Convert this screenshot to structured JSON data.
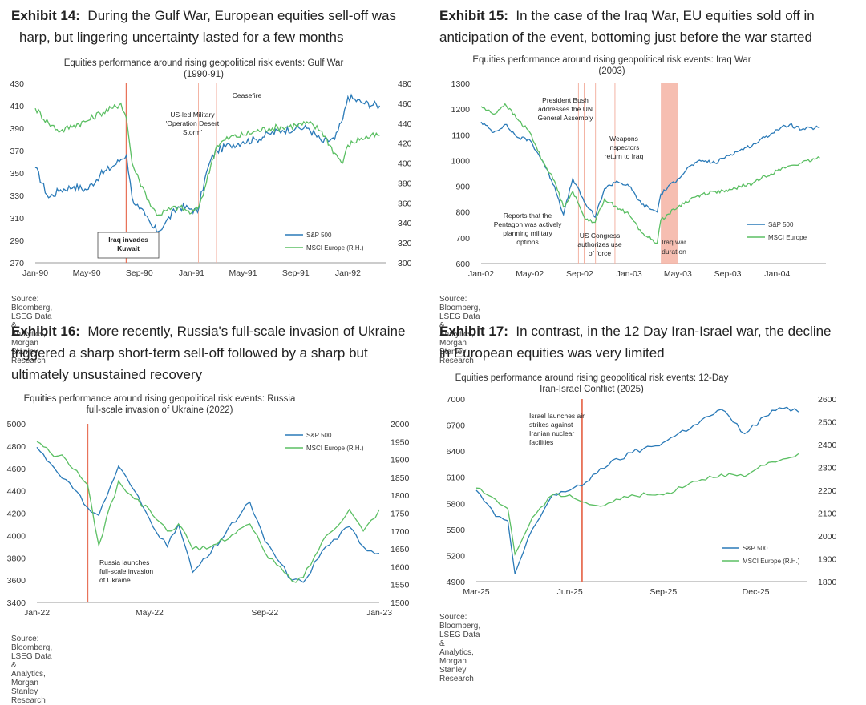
{
  "exhibits": [
    {
      "id": "ex14",
      "label": "Exhibit 14:",
      "heading_line1": "During the Gulf War, European equities sell-off was",
      "heading_line2": "harp, but lingering uncertainty lasted for a few months",
      "chart_title_line1": "Equities performance around rising geopolitical risk events: Gulf War",
      "chart_title_line2": "(1990-91)",
      "source": "Source: Bloomberg, LSEG Data & Analytics, Morgan Stanley Research"
    },
    {
      "id": "ex15",
      "label": "Exhibit 15:",
      "heading_line1": "In the case of the Iraq War, EU equities sold off in",
      "heading_line2": "anticipation of the event, bottoming just before the war started",
      "chart_title_line1": "Equities performance around rising geopolitical risk events: Iraq War",
      "chart_title_line2": "(2003)",
      "source": "Source: Bloomberg, LSEG Data & Analytics, Morgan Stanley Research"
    },
    {
      "id": "ex16",
      "label": "Exhibit 16:",
      "heading_line1": "More recently, Russia's full-scale invasion of Ukraine",
      "heading_line2": "triggered a sharp short-term sell-off followed by a sharp but",
      "heading_line3": "ultimately unsustained recovery",
      "chart_title_line1": "Equities performance around rising geopolitical risk events: Russia",
      "chart_title_line2": "full-scale invasion of Ukraine (2022)",
      "source": "Source: Bloomberg, LSEG Data & Analytics, Morgan Stanley Research"
    },
    {
      "id": "ex17",
      "label": "Exhibit 17:",
      "heading_line1": "In contrast, in the 12 Day Iran-Israel war, the decline",
      "heading_line2": "in European equities was very limited",
      "chart_title_line1": "Equities performance around rising geopolitical risk events: 12-Day",
      "chart_title_line2": "Iran-Israel Conflict (2025)",
      "source": "Source: Bloomberg, LSEG Data & Analytics, Morgan Stanley Research"
    }
  ],
  "colors": {
    "sp500": "#2a7ab8",
    "msci": "#5bbf63",
    "event": "#e8735a",
    "event_light": "#f3b3a4",
    "band": "#f4b3a3"
  },
  "chart_data": [
    {
      "type": "line",
      "x_ticks": [
        "Jan-90",
        "May-90",
        "Sep-90",
        "Jan-91",
        "May-91",
        "Sep-91",
        "Jan-92"
      ],
      "x_range": [
        "1990-01-01",
        "1992-03-31"
      ],
      "ylim_left": [
        270,
        430
      ],
      "yticks_left": [
        270,
        290,
        310,
        330,
        350,
        370,
        390,
        410,
        430
      ],
      "ylim_right": [
        300,
        480
      ],
      "yticks_right": [
        300,
        320,
        340,
        360,
        380,
        400,
        420,
        440,
        460,
        480
      ],
      "legend": "bottom-right",
      "series": [
        {
          "name": "S&P 500",
          "axis": "left",
          "dates": [
            "1990-01-01",
            "1990-02-01",
            "1990-03-01",
            "1990-04-01",
            "1990-05-01",
            "1990-06-01",
            "1990-07-01",
            "1990-07-20",
            "1990-08-02",
            "1990-08-15",
            "1990-09-01",
            "1990-09-15",
            "1990-10-01",
            "1990-10-15",
            "1990-11-01",
            "1990-12-01",
            "1991-01-01",
            "1991-01-15",
            "1991-02-01",
            "1991-02-15",
            "1991-03-01",
            "1991-04-01",
            "1991-05-01",
            "1991-06-01",
            "1991-07-01",
            "1991-08-01",
            "1991-09-01",
            "1991-10-01",
            "1991-11-01",
            "1991-12-01",
            "1991-12-20",
            "1992-01-01",
            "1992-02-01",
            "1992-03-15"
          ],
          "values": [
            355,
            328,
            335,
            338,
            335,
            348,
            356,
            362,
            366,
            328,
            318,
            312,
            302,
            298,
            306,
            320,
            318,
            315,
            345,
            362,
            370,
            375,
            378,
            380,
            385,
            388,
            390,
            390,
            378,
            380,
            398,
            418,
            413,
            410
          ]
        },
        {
          "name": "MSCI Europe (R.H.)",
          "axis": "right",
          "dates": [
            "1990-01-01",
            "1990-02-01",
            "1990-03-01",
            "1990-04-01",
            "1990-05-01",
            "1990-06-01",
            "1990-07-01",
            "1990-07-20",
            "1990-08-02",
            "1990-08-15",
            "1990-09-01",
            "1990-09-15",
            "1990-10-01",
            "1990-10-15",
            "1990-11-01",
            "1990-12-01",
            "1991-01-01",
            "1991-01-15",
            "1991-02-01",
            "1991-02-15",
            "1991-03-01",
            "1991-04-01",
            "1991-05-01",
            "1991-06-01",
            "1991-07-01",
            "1991-08-01",
            "1991-09-01",
            "1991-10-01",
            "1991-11-01",
            "1991-12-01",
            "1991-12-20",
            "1992-01-01",
            "1992-02-01",
            "1992-03-15"
          ],
          "values": [
            455,
            440,
            432,
            438,
            442,
            450,
            455,
            460,
            445,
            400,
            382,
            370,
            355,
            348,
            352,
            356,
            350,
            354,
            375,
            398,
            418,
            426,
            428,
            432,
            435,
            436,
            438,
            440,
            432,
            410,
            400,
            418,
            425,
            428
          ]
        }
      ],
      "events": [
        {
          "date": "1990-08-02",
          "label_line1": "Iraq invades",
          "label_line2": "Kuwait"
        },
        {
          "date": "1991-01-17",
          "label_line1": "US-led Military",
          "label_line2": "'Operation Desert",
          "label_line3": "Storm'"
        },
        {
          "date": "1991-02-28",
          "label_line1": "Ceasefire"
        }
      ]
    },
    {
      "type": "line",
      "x_ticks": [
        "Jan-02",
        "May-02",
        "Sep-02",
        "Jan-03",
        "May-03",
        "Sep-03",
        "Jan-04"
      ],
      "x_range": [
        "2002-01-01",
        "2004-04-30"
      ],
      "ylim": [
        600,
        1300
      ],
      "yticks": [
        600,
        700,
        800,
        900,
        1000,
        1100,
        1200,
        1300
      ],
      "legend": "right",
      "series": [
        {
          "name": "S&P 500",
          "dates": [
            "2002-01-01",
            "2002-02-01",
            "2002-03-01",
            "2002-04-01",
            "2002-05-01",
            "2002-06-01",
            "2002-07-01",
            "2002-07-23",
            "2002-08-15",
            "2002-09-12",
            "2002-10-09",
            "2002-11-01",
            "2002-12-01",
            "2003-01-01",
            "2003-02-01",
            "2003-03-11",
            "2003-03-20",
            "2003-05-01",
            "2003-06-01",
            "2003-07-01",
            "2003-08-01",
            "2003-09-01",
            "2003-10-01",
            "2003-11-01",
            "2003-12-01",
            "2004-01-01",
            "2004-02-01",
            "2004-03-01",
            "2004-04-15"
          ],
          "values": [
            1150,
            1110,
            1140,
            1090,
            1080,
            1000,
            900,
            790,
            930,
            840,
            780,
            890,
            920,
            900,
            830,
            800,
            870,
            930,
            980,
            1000,
            990,
            1020,
            1040,
            1060,
            1090,
            1120,
            1140,
            1120,
            1130
          ]
        },
        {
          "name": "MSCI Europe",
          "dates": [
            "2002-01-01",
            "2002-02-01",
            "2002-03-01",
            "2002-04-01",
            "2002-05-01",
            "2002-06-01",
            "2002-07-01",
            "2002-07-23",
            "2002-08-15",
            "2002-09-12",
            "2002-10-09",
            "2002-11-01",
            "2002-12-01",
            "2003-01-01",
            "2003-02-01",
            "2003-03-11",
            "2003-03-20",
            "2003-05-01",
            "2003-06-01",
            "2003-07-01",
            "2003-08-01",
            "2003-09-01",
            "2003-10-01",
            "2003-11-01",
            "2003-12-01",
            "2004-01-01",
            "2004-02-01",
            "2004-03-01",
            "2004-04-15"
          ],
          "values": [
            1210,
            1180,
            1220,
            1160,
            1110,
            1000,
            920,
            820,
            880,
            780,
            760,
            850,
            820,
            790,
            720,
            680,
            770,
            820,
            850,
            870,
            880,
            880,
            900,
            910,
            940,
            960,
            980,
            990,
            1010
          ]
        }
      ],
      "events": [
        {
          "date": "2002-08-29",
          "label_line1": "Reports that the",
          "label_line2": "Pentagon was actively",
          "label_line3": "planning military",
          "label_line4": "options"
        },
        {
          "date": "2002-09-12",
          "label_line1": "President Bush",
          "label_line2": "addresses the UN",
          "label_line3": "General Assembly"
        },
        {
          "date": "2002-10-10",
          "label_line1": "US Congress",
          "label_line2": "authorizes use",
          "label_line3": "of force"
        },
        {
          "date": "2002-11-27",
          "label_line1": "Weapons",
          "label_line2": "inspectors",
          "label_line3": "return to Iraq"
        }
      ],
      "band": {
        "start": "2003-03-20",
        "end": "2003-05-01",
        "label_line1": "Iraq war",
        "label_line2": "duration"
      }
    },
    {
      "type": "line",
      "x_ticks": [
        "Jan-22",
        "May-22",
        "Sep-22",
        "Jan-23"
      ],
      "x_range": [
        "2022-01-01",
        "2023-01-01"
      ],
      "ylim_left": [
        3400,
        5000
      ],
      "yticks_left": [
        3400,
        3600,
        3800,
        4000,
        4200,
        4400,
        4600,
        4800,
        5000
      ],
      "ylim_right": [
        1500,
        2000
      ],
      "yticks_right": [
        1500,
        1550,
        1600,
        1650,
        1700,
        1750,
        1800,
        1850,
        1900,
        1950,
        2000
      ],
      "legend": "top-right",
      "series": [
        {
          "name": "S&P 500",
          "axis": "left",
          "dates": [
            "2022-01-01",
            "2022-01-15",
            "2022-02-01",
            "2022-02-24",
            "2022-03-08",
            "2022-03-29",
            "2022-04-15",
            "2022-05-01",
            "2022-05-20",
            "2022-06-01",
            "2022-06-16",
            "2022-07-01",
            "2022-08-16",
            "2022-09-01",
            "2022-09-30",
            "2022-10-12",
            "2022-11-01",
            "2022-11-30",
            "2022-12-15",
            "2023-01-01"
          ],
          "values": [
            4790,
            4650,
            4500,
            4250,
            4180,
            4620,
            4400,
            4150,
            3900,
            4100,
            3670,
            3800,
            4300,
            3950,
            3600,
            3580,
            3860,
            4080,
            3900,
            3840
          ]
        },
        {
          "name": "MSCI Europe (R.H.)",
          "axis": "right",
          "dates": [
            "2022-01-01",
            "2022-01-15",
            "2022-02-01",
            "2022-02-24",
            "2022-03-08",
            "2022-03-29",
            "2022-04-15",
            "2022-05-01",
            "2022-05-20",
            "2022-06-01",
            "2022-06-16",
            "2022-07-01",
            "2022-08-16",
            "2022-09-01",
            "2022-09-30",
            "2022-10-12",
            "2022-11-01",
            "2022-11-30",
            "2022-12-15",
            "2023-01-01"
          ],
          "values": [
            1950,
            1920,
            1900,
            1830,
            1660,
            1840,
            1790,
            1760,
            1700,
            1720,
            1650,
            1650,
            1720,
            1640,
            1560,
            1570,
            1670,
            1760,
            1700,
            1760
          ]
        }
      ],
      "events": [
        {
          "date": "2022-02-24",
          "label_line1": "Russia launches",
          "label_line2": "full-scale invasion",
          "label_line3": "of Ukraine"
        }
      ]
    },
    {
      "type": "line",
      "x_ticks": [
        "Mar-25",
        "Jun-25",
        "Sep-25",
        "Dec-25"
      ],
      "x_range": [
        "2025-03-01",
        "2026-01-20"
      ],
      "ylim_left": [
        4900,
        7000
      ],
      "yticks_left": [
        4900,
        5200,
        5500,
        5800,
        6100,
        6400,
        6700,
        7000
      ],
      "ylim_right": [
        1800,
        2600
      ],
      "yticks_right": [
        1800,
        1900,
        2000,
        2100,
        2200,
        2300,
        2400,
        2500,
        2600
      ],
      "legend": "bottom-right",
      "series": [
        {
          "name": "S&P 500",
          "axis": "left",
          "dates": [
            "2025-03-01",
            "2025-03-20",
            "2025-04-01",
            "2025-04-08",
            "2025-04-25",
            "2025-05-15",
            "2025-06-01",
            "2025-06-13",
            "2025-07-01",
            "2025-08-01",
            "2025-09-01",
            "2025-10-01",
            "2025-10-28",
            "2025-11-20",
            "2025-12-10",
            "2025-12-24",
            "2026-01-12"
          ],
          "values": [
            5950,
            5650,
            5600,
            4990,
            5500,
            5900,
            5950,
            6000,
            6200,
            6380,
            6500,
            6700,
            6880,
            6600,
            6800,
            6900,
            6850
          ]
        },
        {
          "name": "MSCI Europe (R.H.)",
          "axis": "right",
          "dates": [
            "2025-03-01",
            "2025-03-20",
            "2025-04-01",
            "2025-04-08",
            "2025-04-25",
            "2025-05-15",
            "2025-06-01",
            "2025-06-13",
            "2025-07-01",
            "2025-08-01",
            "2025-09-01",
            "2025-10-01",
            "2025-10-28",
            "2025-11-20",
            "2025-12-10",
            "2025-12-24",
            "2026-01-12"
          ],
          "values": [
            2210,
            2160,
            2120,
            1920,
            2080,
            2180,
            2180,
            2150,
            2130,
            2180,
            2180,
            2240,
            2270,
            2260,
            2310,
            2330,
            2360
          ]
        }
      ],
      "events": [
        {
          "date": "2025-06-13",
          "label_line1": "Israel launches air",
          "label_line2": "strikes against",
          "label_line3": "Iranian nuclear",
          "label_line4": "facilities"
        }
      ]
    }
  ]
}
